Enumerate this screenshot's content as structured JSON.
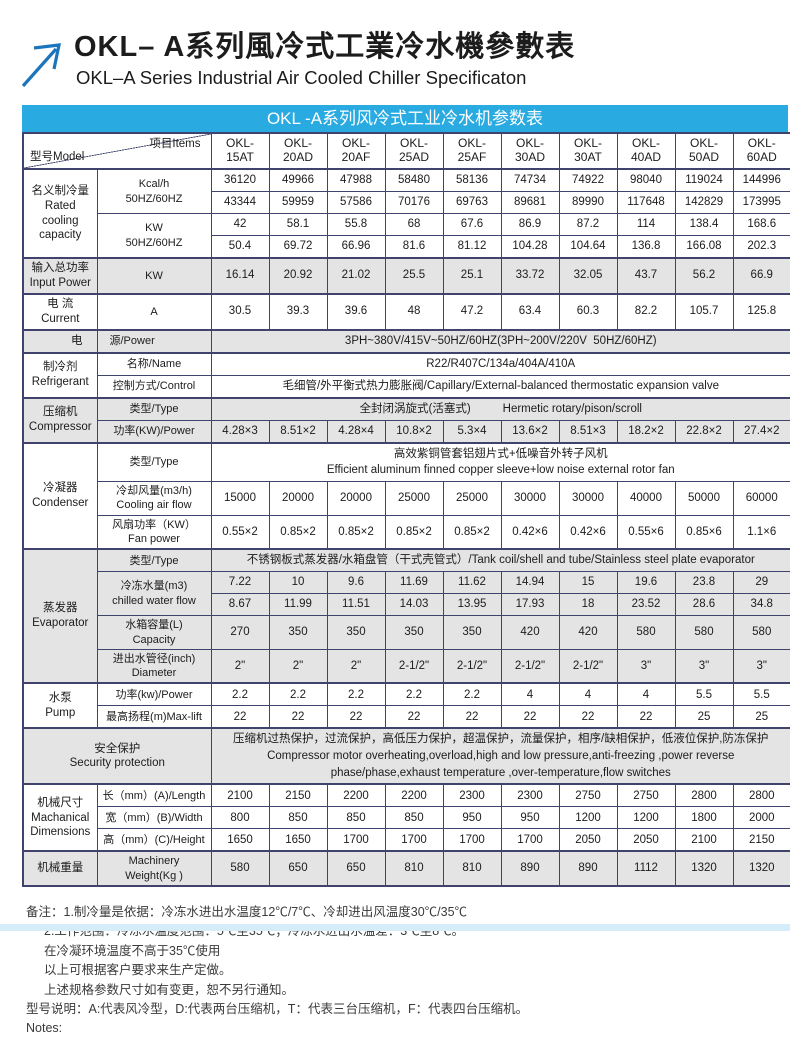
{
  "page": {
    "title_cn": "OKL– A系列風冷式工業冷水機參數表",
    "title_en": "OKL–A Series Industrial Air Cooled Chiller Specificaton"
  },
  "colors": {
    "accent_blue": "#29abe2",
    "arrow_blue": "#1b75bc",
    "table_border": "#40446c",
    "shaded_row": "#e4e4e4",
    "bottom_strip": "#d5ecf9"
  },
  "table": {
    "title": "OKL -A系列风冷式工业冷水机参数表",
    "corner_model": "型号Model",
    "corner_items": "项目Items",
    "models": [
      "OKL-15AT",
      "OKL-20AD",
      "OKL-20AF",
      "OKL-25AD",
      "OKL-25AF",
      "OKL-30AD",
      "OKL-30AT",
      "OKL-40AD",
      "OKL-50AD",
      "OKL-60AD"
    ],
    "sections": [
      {
        "category": "名义制冷量\nRated\ncooling\ncapacity",
        "shaded": false,
        "rows": [
          {
            "item": "Kcal/h\n50HZ/60HZ",
            "subrows": [
              [
                "36120",
                "49966",
                "47988",
                "58480",
                "58136",
                "74734",
                "74922",
                "98040",
                "119024",
                "144996"
              ],
              [
                "43344",
                "59959",
                "57586",
                "70176",
                "69763",
                "89681",
                "89990",
                "117648",
                "142829",
                "173995"
              ]
            ]
          },
          {
            "item": "KW\n50HZ/60HZ",
            "subrows": [
              [
                "42",
                "58.1",
                "55.8",
                "68",
                "67.6",
                "86.9",
                "87.2",
                "114",
                "138.4",
                "168.6"
              ],
              [
                "50.4",
                "69.72",
                "66.96",
                "81.6",
                "81.12",
                "104.28",
                "104.64",
                "136.8",
                "166.08",
                "202.3"
              ]
            ]
          }
        ]
      },
      {
        "category": "输入总功率\nInput Power",
        "shaded": true,
        "rows": [
          {
            "item": "KW",
            "values": [
              "16.14",
              "20.92",
              "21.02",
              "25.5",
              "25.1",
              "33.72",
              "32.05",
              "43.7",
              "56.2",
              "66.9"
            ]
          }
        ]
      },
      {
        "category": "电 流\nCurrent",
        "shaded": false,
        "rows": [
          {
            "item": "A",
            "values": [
              "30.5",
              "39.3",
              "39.6",
              "48",
              "47.2",
              "63.4",
              "60.3",
              "82.2",
              "105.7",
              "125.8"
            ]
          }
        ]
      },
      {
        "category": "电",
        "category_class": "align-right",
        "shaded": true,
        "rows": [
          {
            "item": "源/Power",
            "item_class": "align-left",
            "span": "3PH~380V/415V~50HZ/60HZ(3PH~200V/220V  50HZ/60HZ)"
          }
        ]
      },
      {
        "category": "制冷剂\nRefrigerant",
        "shaded": false,
        "rows": [
          {
            "item": "名称/Name",
            "span": "R22/R407C/134a/404A/410A"
          },
          {
            "item": "控制方式/Control",
            "span": "毛细管/外平衡式热力膨胀阀/Capillary/External-balanced thermostatic expansion valve"
          }
        ]
      },
      {
        "category": "压缩机\nCompressor",
        "shaded": true,
        "rows": [
          {
            "item": "类型/Type",
            "span": "全封闭涡旋式(活塞式)          Hermetic rotary/pison/scroll"
          },
          {
            "item": "功率(KW)/Power",
            "values": [
              "4.28×3",
              "8.51×2",
              "4.28×4",
              "10.8×2",
              "5.3×4",
              "13.6×2",
              "8.51×3",
              "18.2×2",
              "22.8×2",
              "27.4×2"
            ]
          }
        ]
      },
      {
        "category": "冷凝器\nCondenser",
        "shaded": false,
        "rows": [
          {
            "item": "类型/Type",
            "span": "高效紫铜管套铝翅片式+低噪音外转子风机\nEfficient aluminum finned copper sleeve+low noise external rotor fan"
          },
          {
            "item": "冷却风量(m3/h)\nCooling air flow",
            "values": [
              "15000",
              "20000",
              "20000",
              "25000",
              "25000",
              "30000",
              "30000",
              "40000",
              "50000",
              "60000"
            ]
          },
          {
            "item": "风扇功率（KW）\nFan power",
            "values": [
              "0.55×2",
              "0.85×2",
              "0.85×2",
              "0.85×2",
              "0.85×2",
              "0.42×6",
              "0.42×6",
              "0.55×6",
              "0.85×6",
              "1.1×6"
            ]
          }
        ]
      },
      {
        "category": "蒸发器\nEvaporator",
        "shaded": true,
        "rows": [
          {
            "item": "类型/Type",
            "span": "不锈钢板式蒸发器/水箱盘管（干式壳管式）/Tank coil/shell and tube/Stainless steel plate evaporator"
          },
          {
            "item": "冷冻水量(m3)\nchilled water flow",
            "subrows": [
              [
                "7.22",
                "10",
                "9.6",
                "11.69",
                "11.62",
                "14.94",
                "15",
                "19.6",
                "23.8",
                "29"
              ],
              [
                "8.67",
                "11.99",
                "11.51",
                "14.03",
                "13.95",
                "17.93",
                "18",
                "23.52",
                "28.6",
                "34.8"
              ]
            ]
          },
          {
            "item": "水箱容量(L)\nCapacity",
            "values": [
              "270",
              "350",
              "350",
              "350",
              "350",
              "420",
              "420",
              "580",
              "580",
              "580"
            ]
          },
          {
            "item": "进出水管径(inch)\nDiameter",
            "values": [
              "2\"",
              "2\"",
              "2\"",
              "2-1/2\"",
              "2-1/2\"",
              "2-1/2\"",
              "2-1/2\"",
              "3\"",
              "3\"",
              "3\""
            ]
          }
        ]
      },
      {
        "category": "水泵\nPump",
        "shaded": false,
        "rows": [
          {
            "item": "功率(kw)/Power",
            "values": [
              "2.2",
              "2.2",
              "2.2",
              "2.2",
              "2.2",
              "4",
              "4",
              "4",
              "5.5",
              "5.5"
            ]
          },
          {
            "item": "最高扬程(m)Max-lift",
            "values": [
              "22",
              "22",
              "22",
              "22",
              "22",
              "22",
              "22",
              "22",
              "25",
              "25"
            ]
          }
        ]
      },
      {
        "full_label": "安全保护\nSecurity protection",
        "shaded": true,
        "rows": [
          {
            "span": "压缩机过热保护，过流保护，高低压力保护，超温保护，流量保护，相序/缺相保护，低液位保护,防冻保护\nCompressor motor overheating,overload,high and low pressure,anti-freezing ,power reverse phase/phase,exhaust temperature ,over-temperature,flow switches"
          }
        ]
      },
      {
        "category": "机械尺寸\nMachanical\nDimensions",
        "shaded": false,
        "rows": [
          {
            "item": "长（mm）(A)/Length",
            "values": [
              "2100",
              "2150",
              "2200",
              "2200",
              "2300",
              "2300",
              "2750",
              "2750",
              "2800",
              "2800"
            ]
          },
          {
            "item": "宽（mm）(B)/Width",
            "values": [
              "800",
              "850",
              "850",
              "850",
              "950",
              "950",
              "1200",
              "1200",
              "1800",
              "2000"
            ]
          },
          {
            "item": "高（mm）(C)/Height",
            "values": [
              "1650",
              "1650",
              "1700",
              "1700",
              "1700",
              "1700",
              "2050",
              "2050",
              "2100",
              "2150"
            ]
          }
        ]
      },
      {
        "category": "机械重量",
        "shaded": true,
        "rows": [
          {
            "item": "Machinery\nWeight(Kg )",
            "values": [
              "580",
              "650",
              "650",
              "810",
              "810",
              "890",
              "890",
              "1112",
              "1320",
              "1320"
            ]
          }
        ]
      }
    ]
  },
  "notes": {
    "lines": [
      {
        "indent": 0,
        "text": "备注：1.制冷量是依据：冷冻水进出水温度12℃/7℃、冷却进出风温度30℃/35℃"
      },
      {
        "indent": 1,
        "text": "2.工作范围：冷冻水温度范围：5℃至35℃；冷冻水进出水温差：3℃至8℃。"
      },
      {
        "indent": 1,
        "text": "在冷凝环境温度不高于35℃使用"
      },
      {
        "indent": 1,
        "text": "以上可根据客户要求来生产定做。"
      },
      {
        "indent": 1,
        "text": "上述规格参数尺寸如有变更，恕不另行通知。"
      },
      {
        "indent": 0,
        "text": "型号说明：A:代表风冷型，D:代表两台压缩机，T：代表三台压缩机，F：代表四台压缩机。"
      },
      {
        "indent": 0,
        "text": "Notes:"
      }
    ]
  }
}
